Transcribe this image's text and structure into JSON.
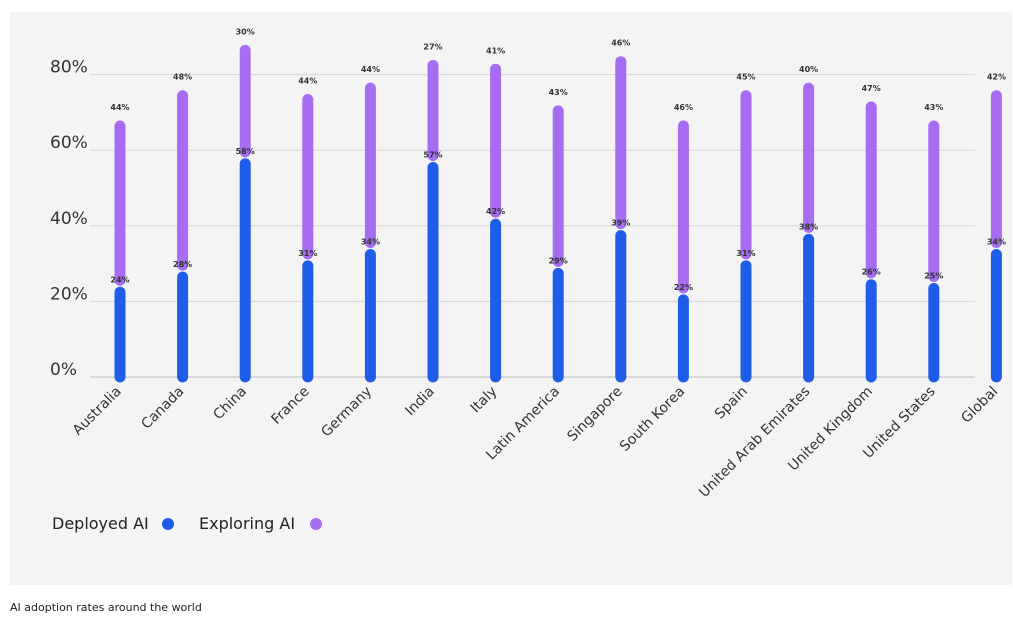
{
  "chart_data": {
    "type": "bar",
    "subtype": "stacked-pill",
    "categories": [
      "Australia",
      "Canada",
      "China",
      "France",
      "Germany",
      "India",
      "Italy",
      "Latin America",
      "Singapore",
      "South Korea",
      "Spain",
      "United Arab Emirates",
      "United Kingdom",
      "United States",
      "Global"
    ],
    "series": [
      {
        "name": "Deployed AI",
        "color": "#1f5ce8",
        "values": [
          24,
          28,
          58,
          31,
          34,
          57,
          42,
          29,
          39,
          22,
          31,
          38,
          26,
          25,
          34
        ],
        "labels": [
          "24%",
          "28%",
          "58%",
          "31%",
          "34%",
          "57%",
          "42%",
          "29%",
          "39%",
          "22%",
          "31%",
          "38%",
          "26%",
          "25%",
          "34%"
        ]
      },
      {
        "name": "Exploring AI",
        "color": "#a66cf2",
        "values": [
          44,
          48,
          30,
          44,
          44,
          27,
          41,
          43,
          46,
          46,
          45,
          40,
          47,
          43,
          42
        ],
        "labels": [
          "44%",
          "48%",
          "30%",
          "44%",
          "44%",
          "27%",
          "41%",
          "43%",
          "46%",
          "46%",
          "45%",
          "40%",
          "47%",
          "43%",
          "42%"
        ]
      }
    ],
    "y_ticks": [
      "0%",
      "20%",
      "40%",
      "60%",
      "80%"
    ],
    "ylim": [
      0,
      100
    ],
    "grid": true,
    "legend_position": "bottom-left"
  },
  "caption": "AI adoption rates around the world"
}
